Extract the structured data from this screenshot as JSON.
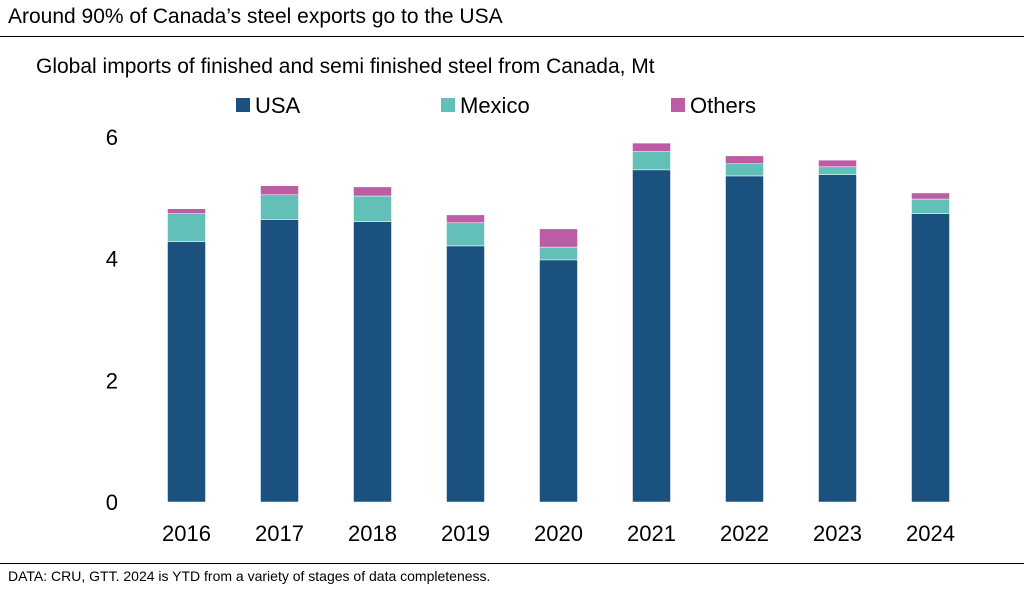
{
  "title": "Around 90% of Canada’s steel exports go to the USA",
  "footnote": "DATA: CRU, GTT. 2024 is YTD from a variety of stages of data completeness.",
  "chart_data": {
    "type": "bar",
    "stacked": true,
    "title": "Global imports of finished and semi finished steel from Canada, Mt",
    "xlabel": "",
    "ylabel": "",
    "ylim": [
      0,
      6
    ],
    "yticks": [
      0,
      2,
      4,
      6
    ],
    "grid": false,
    "legend_position": "top",
    "categories": [
      "2016",
      "2017",
      "2018",
      "2019",
      "2020",
      "2021",
      "2022",
      "2023",
      "2024"
    ],
    "series": [
      {
        "name": "USA",
        "color": "#1b517e",
        "values": [
          4.28,
          4.64,
          4.61,
          4.21,
          3.98,
          5.46,
          5.36,
          5.38,
          4.74
        ]
      },
      {
        "name": "Mexico",
        "color": "#63c0b9",
        "values": [
          0.46,
          0.41,
          0.42,
          0.38,
          0.21,
          0.3,
          0.2,
          0.13,
          0.24
        ]
      },
      {
        "name": "Others",
        "color": "#bd5ca5",
        "values": [
          0.08,
          0.15,
          0.15,
          0.13,
          0.3,
          0.14,
          0.13,
          0.11,
          0.1
        ]
      }
    ]
  }
}
